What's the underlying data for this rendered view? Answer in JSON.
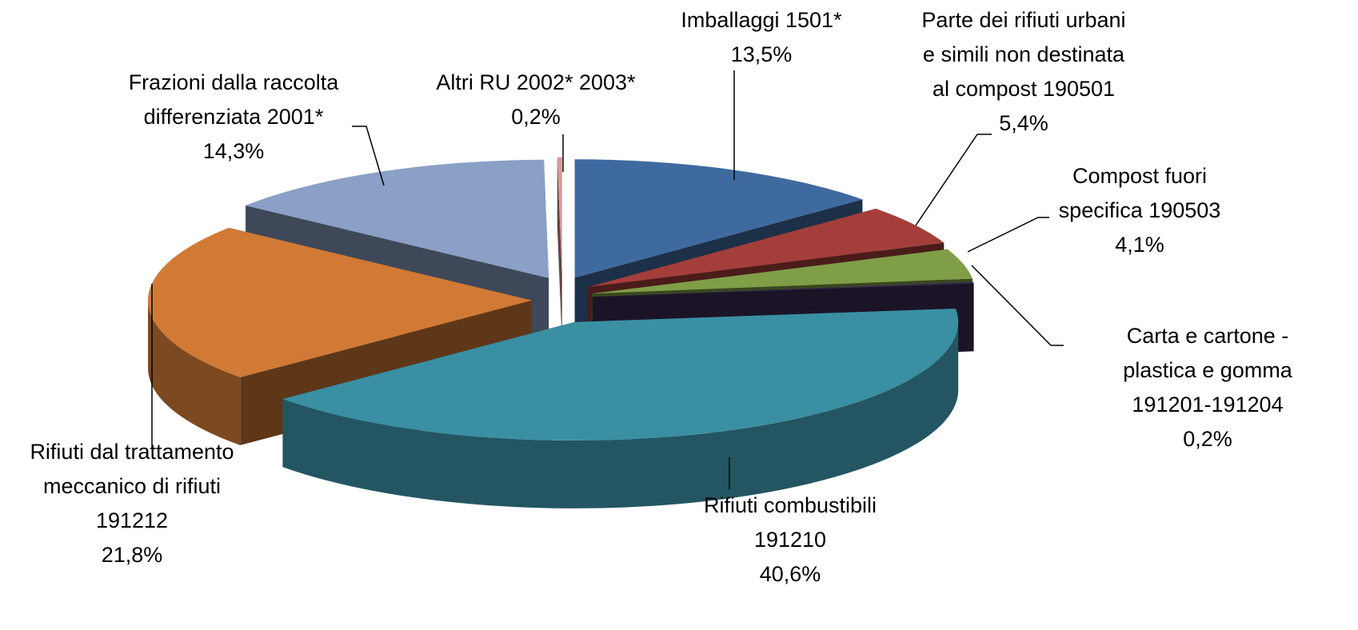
{
  "chart_data": {
    "type": "pie3d",
    "categories": [
      [
        "Imballaggi 1501*"
      ],
      [
        "Parte dei rifiuti urbani",
        "e simili non destinata",
        "al compost  190501"
      ],
      [
        "Compost fuori",
        "specifica 190503"
      ],
      [
        "Carta e cartone -",
        "plastica e gomma",
        "191201-191204"
      ],
      [
        "Rifiuti combustibili",
        "191210"
      ],
      [
        "Rifiuti dal trattamento",
        "meccanico di rifiuti",
        "191212"
      ],
      [
        "Frazioni dalla raccolta",
        "differenziata 2001*"
      ],
      [
        "Altri RU 2002* 2003*"
      ]
    ],
    "values": [
      13.5,
      5.4,
      4.1,
      0.2,
      40.6,
      21.8,
      14.3,
      0.2
    ],
    "value_labels": [
      "13,5%",
      "5,4%",
      "4,1%",
      "0,2%",
      "40,6%",
      "21,8%",
      "14,3%",
      "0,2%"
    ],
    "colors": [
      "#3f6aa0",
      "#a43e3a",
      "#7f9e47",
      "#3b2d55",
      "#3a8fa3",
      "#d07a35",
      "#8aa0c6",
      "#d69a9a"
    ]
  }
}
